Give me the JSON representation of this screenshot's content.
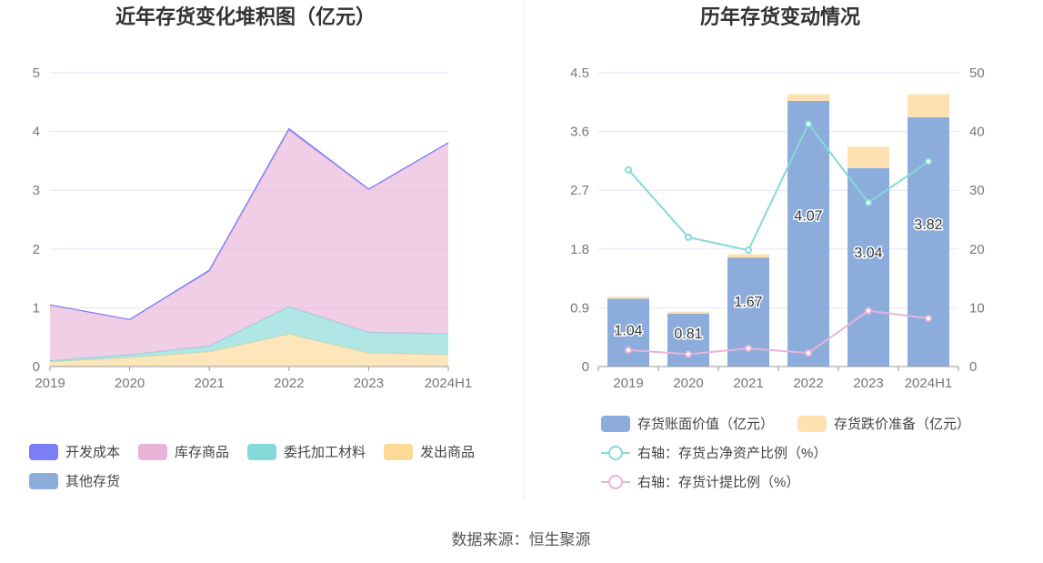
{
  "source": "数据来源：恒生聚源",
  "chart_data": [
    {
      "type": "area",
      "title": "近年存货变化堆积图（亿元）",
      "categories": [
        "2019",
        "2020",
        "2021",
        "2022",
        "2023",
        "2024H1"
      ],
      "ylim": [
        0,
        5
      ],
      "yticks": [
        "0",
        "1",
        "2",
        "3",
        "4",
        "5"
      ],
      "stacked": true,
      "grid": true,
      "legend_position": "bottom",
      "series": [
        {
          "name": "开发成本",
          "color": "#7b7ef5",
          "values": [
            0,
            0,
            0.02,
            0.03,
            0.01,
            0.01
          ]
        },
        {
          "name": "库存商品",
          "color": "#e8b4d8",
          "values": [
            0.95,
            0.6,
            1.27,
            3.0,
            2.43,
            3.24
          ]
        },
        {
          "name": "委托加工材料",
          "color": "#86d9d9",
          "values": [
            0.02,
            0.05,
            0.1,
            0.47,
            0.35,
            0.36
          ]
        },
        {
          "name": "发出商品",
          "color": "#fcd996",
          "values": [
            0.08,
            0.15,
            0.25,
            0.55,
            0.23,
            0.2
          ]
        },
        {
          "name": "其他存货",
          "color": "#8cacdc",
          "values": [
            0,
            0,
            0,
            0,
            0,
            0
          ]
        }
      ]
    },
    {
      "type": "bar",
      "title": "历年存货变动情况",
      "categories": [
        "2019",
        "2020",
        "2021",
        "2022",
        "2023",
        "2024H1"
      ],
      "ylim": [
        0,
        4.5
      ],
      "yticks": [
        "0",
        "0.9",
        "1.8",
        "2.7",
        "3.6",
        "4.5"
      ],
      "y2lim": [
        0,
        50
      ],
      "y2ticks": [
        "0",
        "10",
        "20",
        "30",
        "40",
        "50"
      ],
      "stacked": true,
      "grid": true,
      "legend_position": "bottom",
      "series": [
        {
          "name": "存货账面价值（亿元）",
          "color": "#8cacdc",
          "values": [
            1.04,
            0.81,
            1.67,
            4.07,
            3.04,
            3.82
          ],
          "labels": [
            "1.04",
            "0.81",
            "1.67",
            "4.07",
            "3.04",
            "3.82"
          ]
        },
        {
          "name": "存货跌价准备（亿元）",
          "color": "#fde1b0",
          "values": [
            0.03,
            0.03,
            0.05,
            0.1,
            0.33,
            0.35
          ]
        }
      ],
      "line_series": [
        {
          "name": "右轴：存货占净资产比例（%）",
          "color": "#86d9d9",
          "values": [
            33.5,
            22,
            19.8,
            41.3,
            27.9,
            34.9
          ]
        },
        {
          "name": "右轴：存货计提比例（%）",
          "color": "#e8b4d8",
          "values": [
            2.8,
            2.1,
            3.1,
            2.3,
            9.5,
            8.2
          ]
        }
      ]
    }
  ]
}
